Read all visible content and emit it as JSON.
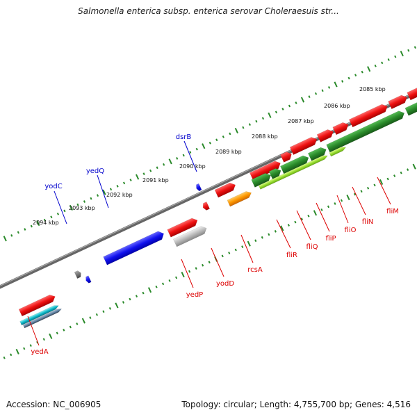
{
  "title": "Salmonella enterica subsp. enterica serovar Choleraesuis str...",
  "footer": {
    "accession": "Accession: NC_006905",
    "topology": "Topology: circular; Length: 4,755,700 bp; Genes: 4,516"
  },
  "colors": {
    "red": "#ee1111",
    "blue": "#1111ee",
    "green": "#2a8a2a",
    "lightgreen": "#99dd33",
    "orange": "#ff9900",
    "gray": "#777777",
    "lightgray": "#bbbbbb",
    "cyan": "#11bbcc",
    "slate": "#6688aa",
    "label_red": "#dd0000",
    "label_blue": "#0000cc",
    "ruler_green": "#2a8a2a"
  },
  "ruler_ticks": [
    {
      "label": "2094 kbp"
    },
    {
      "label": "2093 kbp"
    },
    {
      "label": "2092 kbp"
    },
    {
      "label": "2091 kbp"
    },
    {
      "label": "2090 kbp"
    },
    {
      "label": "2089 kbp"
    },
    {
      "label": "2088 kbp"
    },
    {
      "label": "2087 kbp"
    },
    {
      "label": "2086 kbp"
    },
    {
      "label": "2085 kbp"
    }
  ],
  "gene_labels": [
    {
      "name": "yodC",
      "color": "blue"
    },
    {
      "name": "yedQ",
      "color": "blue"
    },
    {
      "name": "dsrB",
      "color": "blue"
    },
    {
      "name": "yedA",
      "color": "red"
    },
    {
      "name": "yedP",
      "color": "red"
    },
    {
      "name": "yodD",
      "color": "red"
    },
    {
      "name": "rcsA",
      "color": "red"
    },
    {
      "name": "fliR",
      "color": "red"
    },
    {
      "name": "fliQ",
      "color": "red"
    },
    {
      "name": "fliP",
      "color": "red"
    },
    {
      "name": "fliO",
      "color": "red"
    },
    {
      "name": "fliN",
      "color": "red"
    },
    {
      "name": "fliM",
      "color": "red"
    }
  ]
}
